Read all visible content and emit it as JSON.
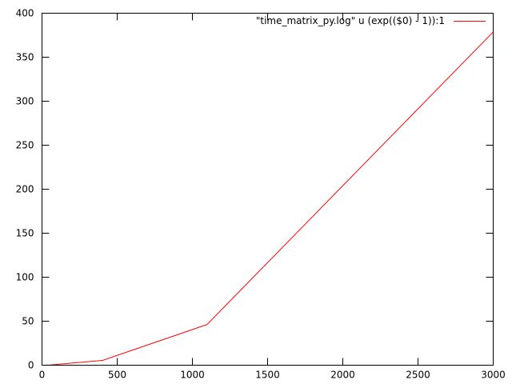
{
  "chart_data": {
    "type": "line",
    "title": "",
    "xlabel": "",
    "ylabel": "",
    "xlim": [
      0,
      3000
    ],
    "ylim": [
      0,
      400
    ],
    "xticks": [
      0,
      500,
      1000,
      1500,
      2000,
      2500,
      3000
    ],
    "yticks": [
      0,
      50,
      100,
      150,
      200,
      250,
      300,
      350,
      400
    ],
    "grid": false,
    "legend_position": "top-right",
    "series": [
      {
        "name": "\"time_matrix_py.log\" u (exp(($0) - 1)):1",
        "color": "#ff0000",
        "x": [
          0,
          1,
          8,
          55,
          403,
          1097,
          3000
        ],
        "y": [
          0,
          0,
          0,
          0.2,
          5.5,
          46.2,
          378.7
        ]
      }
    ]
  }
}
